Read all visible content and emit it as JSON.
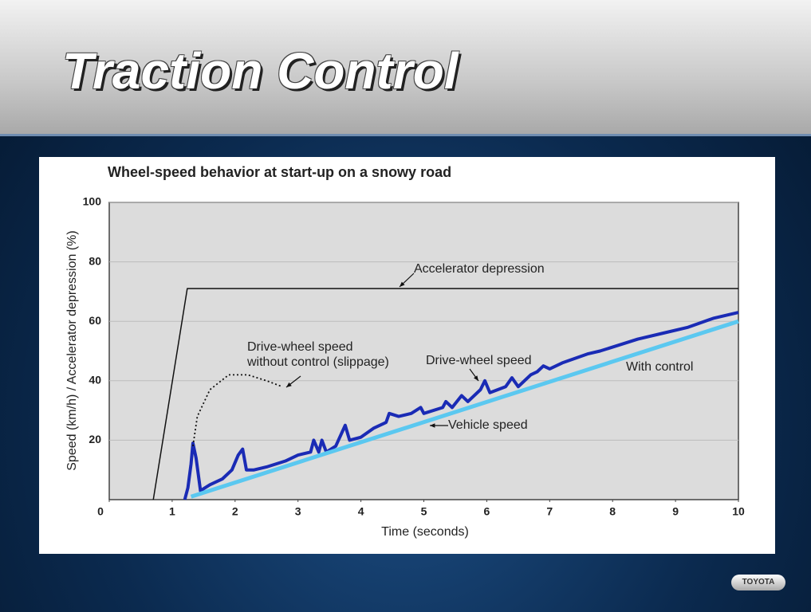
{
  "header": {
    "title": "Traction Control"
  },
  "chart_data": {
    "type": "line",
    "title": "Wheel-speed behavior at start-up on a snowy road",
    "x_label": "Time (seconds)",
    "y_label": "Speed (km/h) / Accelerator depression (%)",
    "xlim": [
      0,
      10
    ],
    "ylim": [
      0,
      100
    ],
    "xticks": [
      0,
      1,
      2,
      3,
      4,
      5,
      6,
      7,
      8,
      9,
      10
    ],
    "yticks": [
      20,
      40,
      60,
      80,
      100
    ],
    "grid": true,
    "series": [
      {
        "name": "Accelerator depression",
        "color": "#111111",
        "style": "solid",
        "x": [
          0.7,
          1.24,
          10
        ],
        "values": [
          0,
          71,
          71
        ]
      },
      {
        "name": "Drive-wheel speed",
        "color": "#1a2bb5",
        "style": "solid",
        "x": [
          1.2,
          1.25,
          1.3,
          1.33,
          1.38,
          1.45,
          1.6,
          1.8,
          1.95,
          2.05,
          2.12,
          2.18,
          2.3,
          2.5,
          2.8,
          3.0,
          3.2,
          3.25,
          3.33,
          3.38,
          3.45,
          3.6,
          3.75,
          3.82,
          4.0,
          4.2,
          4.4,
          4.45,
          4.6,
          4.8,
          4.95,
          5.0,
          5.3,
          5.35,
          5.45,
          5.6,
          5.7,
          5.9,
          5.97,
          6.05,
          6.3,
          6.4,
          6.5,
          6.7,
          6.8,
          6.9,
          7.0,
          7.2,
          7.6,
          7.8,
          8.1,
          8.4,
          8.8,
          9.2,
          9.6,
          10
        ],
        "values": [
          0,
          4,
          12,
          19,
          14,
          3,
          5,
          7,
          10,
          15,
          17,
          10,
          10,
          11,
          13,
          15,
          16,
          20,
          16,
          20,
          16,
          18,
          25,
          20,
          21,
          24,
          26,
          29,
          28,
          29,
          31,
          29,
          31,
          33,
          31,
          35,
          33,
          37,
          40,
          36,
          38,
          41,
          38,
          42,
          43,
          45,
          44,
          46,
          49,
          50,
          52,
          54,
          56,
          58,
          61,
          63
        ]
      },
      {
        "name": "Vehicle speed",
        "color": "#5bc8f0",
        "style": "solid",
        "x": [
          1.3,
          10
        ],
        "values": [
          1,
          60
        ]
      },
      {
        "color": "#111111",
        "style": "dotted",
        "x": [
          1.33,
          1.4,
          1.6,
          1.9,
          2.2,
          2.5,
          2.75
        ],
        "values": [
          18,
          28,
          37,
          42,
          42,
          40,
          38
        ]
      }
    ],
    "annotations": [
      "Drive-wheel speed",
      "without control (slippage)",
      "With control"
    ]
  },
  "footer": {
    "logo": "TOYOTA"
  }
}
